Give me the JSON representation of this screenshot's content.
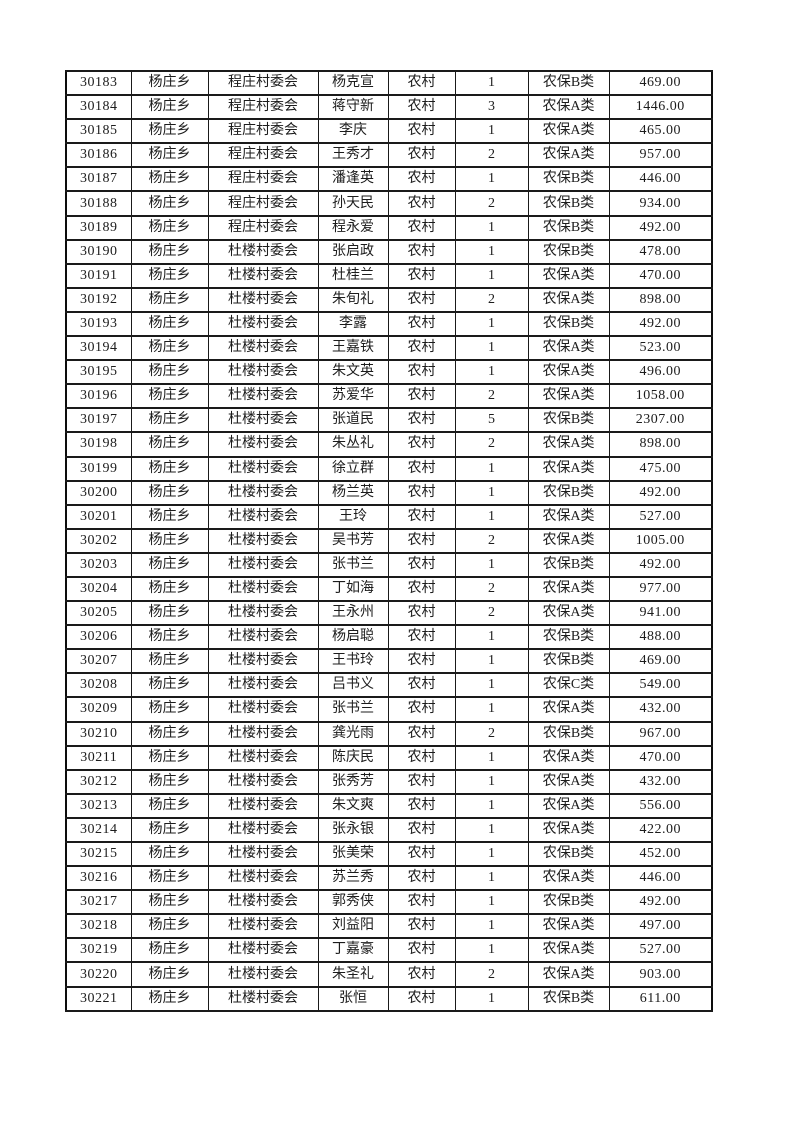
{
  "page": {
    "background": "#ffffff",
    "text_color": "#1c1c1c",
    "border_color": "#0d0d0d"
  },
  "table": {
    "fields": [
      "id",
      "township",
      "village",
      "person",
      "residence",
      "count",
      "category",
      "amount"
    ],
    "field_names": {
      "id": "serial-number",
      "township": "township",
      "village": "village-committee",
      "person": "person-name",
      "residence": "residence-type",
      "count": "person-count",
      "category": "insurance-category",
      "amount": "amount"
    },
    "rows": [
      {
        "id": "30183",
        "township": "杨庄乡",
        "village": "程庄村委会",
        "person": "杨克宣",
        "residence": "农村",
        "count": "1",
        "category": "农保B类",
        "amount": "469.00"
      },
      {
        "id": "30184",
        "township": "杨庄乡",
        "village": "程庄村委会",
        "person": "蒋守新",
        "residence": "农村",
        "count": "3",
        "category": "农保A类",
        "amount": "1446.00"
      },
      {
        "id": "30185",
        "township": "杨庄乡",
        "village": "程庄村委会",
        "person": "李庆",
        "residence": "农村",
        "count": "1",
        "category": "农保A类",
        "amount": "465.00"
      },
      {
        "id": "30186",
        "township": "杨庄乡",
        "village": "程庄村委会",
        "person": "王秀才",
        "residence": "农村",
        "count": "2",
        "category": "农保A类",
        "amount": "957.00"
      },
      {
        "id": "30187",
        "township": "杨庄乡",
        "village": "程庄村委会",
        "person": "潘逢英",
        "residence": "农村",
        "count": "1",
        "category": "农保B类",
        "amount": "446.00"
      },
      {
        "id": "30188",
        "township": "杨庄乡",
        "village": "程庄村委会",
        "person": "孙天民",
        "residence": "农村",
        "count": "2",
        "category": "农保B类",
        "amount": "934.00"
      },
      {
        "id": "30189",
        "township": "杨庄乡",
        "village": "程庄村委会",
        "person": "程永爱",
        "residence": "农村",
        "count": "1",
        "category": "农保B类",
        "amount": "492.00"
      },
      {
        "id": "30190",
        "township": "杨庄乡",
        "village": "杜楼村委会",
        "person": "张启政",
        "residence": "农村",
        "count": "1",
        "category": "农保B类",
        "amount": "478.00"
      },
      {
        "id": "30191",
        "township": "杨庄乡",
        "village": "杜楼村委会",
        "person": "杜桂兰",
        "residence": "农村",
        "count": "1",
        "category": "农保A类",
        "amount": "470.00"
      },
      {
        "id": "30192",
        "township": "杨庄乡",
        "village": "杜楼村委会",
        "person": "朱旬礼",
        "residence": "农村",
        "count": "2",
        "category": "农保A类",
        "amount": "898.00"
      },
      {
        "id": "30193",
        "township": "杨庄乡",
        "village": "杜楼村委会",
        "person": "李露",
        "residence": "农村",
        "count": "1",
        "category": "农保B类",
        "amount": "492.00"
      },
      {
        "id": "30194",
        "township": "杨庄乡",
        "village": "杜楼村委会",
        "person": "王嘉铁",
        "residence": "农村",
        "count": "1",
        "category": "农保A类",
        "amount": "523.00"
      },
      {
        "id": "30195",
        "township": "杨庄乡",
        "village": "杜楼村委会",
        "person": "朱文英",
        "residence": "农村",
        "count": "1",
        "category": "农保A类",
        "amount": "496.00"
      },
      {
        "id": "30196",
        "township": "杨庄乡",
        "village": "杜楼村委会",
        "person": "苏爱华",
        "residence": "农村",
        "count": "2",
        "category": "农保A类",
        "amount": "1058.00"
      },
      {
        "id": "30197",
        "township": "杨庄乡",
        "village": "杜楼村委会",
        "person": "张道民",
        "residence": "农村",
        "count": "5",
        "category": "农保B类",
        "amount": "2307.00"
      },
      {
        "id": "30198",
        "township": "杨庄乡",
        "village": "杜楼村委会",
        "person": "朱丛礼",
        "residence": "农村",
        "count": "2",
        "category": "农保A类",
        "amount": "898.00"
      },
      {
        "id": "30199",
        "township": "杨庄乡",
        "village": "杜楼村委会",
        "person": "徐立群",
        "residence": "农村",
        "count": "1",
        "category": "农保A类",
        "amount": "475.00"
      },
      {
        "id": "30200",
        "township": "杨庄乡",
        "village": "杜楼村委会",
        "person": "杨兰英",
        "residence": "农村",
        "count": "1",
        "category": "农保B类",
        "amount": "492.00"
      },
      {
        "id": "30201",
        "township": "杨庄乡",
        "village": "杜楼村委会",
        "person": "王玲",
        "residence": "农村",
        "count": "1",
        "category": "农保A类",
        "amount": "527.00"
      },
      {
        "id": "30202",
        "township": "杨庄乡",
        "village": "杜楼村委会",
        "person": "吴书芳",
        "residence": "农村",
        "count": "2",
        "category": "农保A类",
        "amount": "1005.00"
      },
      {
        "id": "30203",
        "township": "杨庄乡",
        "village": "杜楼村委会",
        "person": "张书兰",
        "residence": "农村",
        "count": "1",
        "category": "农保B类",
        "amount": "492.00"
      },
      {
        "id": "30204",
        "township": "杨庄乡",
        "village": "杜楼村委会",
        "person": "丁如海",
        "residence": "农村",
        "count": "2",
        "category": "农保A类",
        "amount": "977.00"
      },
      {
        "id": "30205",
        "township": "杨庄乡",
        "village": "杜楼村委会",
        "person": "王永州",
        "residence": "农村",
        "count": "2",
        "category": "农保A类",
        "amount": "941.00"
      },
      {
        "id": "30206",
        "township": "杨庄乡",
        "village": "杜楼村委会",
        "person": "杨启聪",
        "residence": "农村",
        "count": "1",
        "category": "农保B类",
        "amount": "488.00"
      },
      {
        "id": "30207",
        "township": "杨庄乡",
        "village": "杜楼村委会",
        "person": "王书玲",
        "residence": "农村",
        "count": "1",
        "category": "农保B类",
        "amount": "469.00"
      },
      {
        "id": "30208",
        "township": "杨庄乡",
        "village": "杜楼村委会",
        "person": "吕书义",
        "residence": "农村",
        "count": "1",
        "category": "农保C类",
        "amount": "549.00"
      },
      {
        "id": "30209",
        "township": "杨庄乡",
        "village": "杜楼村委会",
        "person": "张书兰",
        "residence": "农村",
        "count": "1",
        "category": "农保A类",
        "amount": "432.00"
      },
      {
        "id": "30210",
        "township": "杨庄乡",
        "village": "杜楼村委会",
        "person": "龚光雨",
        "residence": "农村",
        "count": "2",
        "category": "农保B类",
        "amount": "967.00"
      },
      {
        "id": "30211",
        "township": "杨庄乡",
        "village": "杜楼村委会",
        "person": "陈庆民",
        "residence": "农村",
        "count": "1",
        "category": "农保A类",
        "amount": "470.00"
      },
      {
        "id": "30212",
        "township": "杨庄乡",
        "village": "杜楼村委会",
        "person": "张秀芳",
        "residence": "农村",
        "count": "1",
        "category": "农保A类",
        "amount": "432.00"
      },
      {
        "id": "30213",
        "township": "杨庄乡",
        "village": "杜楼村委会",
        "person": "朱文爽",
        "residence": "农村",
        "count": "1",
        "category": "农保A类",
        "amount": "556.00"
      },
      {
        "id": "30214",
        "township": "杨庄乡",
        "village": "杜楼村委会",
        "person": "张永银",
        "residence": "农村",
        "count": "1",
        "category": "农保A类",
        "amount": "422.00"
      },
      {
        "id": "30215",
        "township": "杨庄乡",
        "village": "杜楼村委会",
        "person": "张美荣",
        "residence": "农村",
        "count": "1",
        "category": "农保B类",
        "amount": "452.00"
      },
      {
        "id": "30216",
        "township": "杨庄乡",
        "village": "杜楼村委会",
        "person": "苏兰秀",
        "residence": "农村",
        "count": "1",
        "category": "农保A类",
        "amount": "446.00"
      },
      {
        "id": "30217",
        "township": "杨庄乡",
        "village": "杜楼村委会",
        "person": "郭秀侠",
        "residence": "农村",
        "count": "1",
        "category": "农保B类",
        "amount": "492.00"
      },
      {
        "id": "30218",
        "township": "杨庄乡",
        "village": "杜楼村委会",
        "person": "刘益阳",
        "residence": "农村",
        "count": "1",
        "category": "农保A类",
        "amount": "497.00"
      },
      {
        "id": "30219",
        "township": "杨庄乡",
        "village": "杜楼村委会",
        "person": "丁嘉豪",
        "residence": "农村",
        "count": "1",
        "category": "农保A类",
        "amount": "527.00"
      },
      {
        "id": "30220",
        "township": "杨庄乡",
        "village": "杜楼村委会",
        "person": "朱圣礼",
        "residence": "农村",
        "count": "2",
        "category": "农保A类",
        "amount": "903.00"
      },
      {
        "id": "30221",
        "township": "杨庄乡",
        "village": "杜楼村委会",
        "person": "张恒",
        "residence": "农村",
        "count": "1",
        "category": "农保B类",
        "amount": "611.00"
      }
    ]
  }
}
